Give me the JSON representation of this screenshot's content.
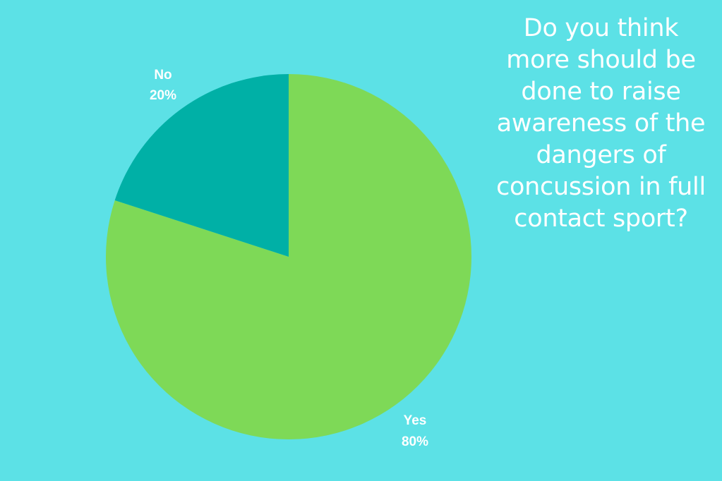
{
  "chart_data": {
    "type": "pie",
    "title_lines": [
      "Do you think",
      "more should be",
      "done to raise",
      "awareness of the",
      "dangers of",
      "concussion in full",
      "contact sport?"
    ],
    "slices": [
      {
        "label": "Yes",
        "value": 80,
        "value_label": "80%",
        "color": "#7ed957"
      },
      {
        "label": "No",
        "value": 20,
        "value_label": "20%",
        "color": "#00b0a6"
      }
    ],
    "start": "12 o'clock",
    "direction": "clockwise",
    "label_color": "#ffffff"
  },
  "colors": {
    "background": "#5ce1e6"
  }
}
